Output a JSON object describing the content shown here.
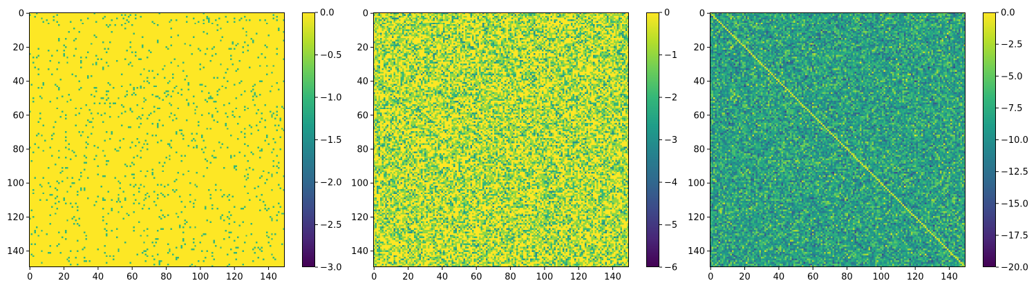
{
  "chart_data": [
    {
      "type": "heatmap",
      "title": "",
      "xlabel": "",
      "ylabel": "",
      "rows": 150,
      "cols": 150,
      "xlim": [
        0,
        150
      ],
      "ylim": [
        150,
        0
      ],
      "x_ticks": [
        "0",
        "20",
        "40",
        "60",
        "80",
        "100",
        "120",
        "140"
      ],
      "y_ticks": [
        "0",
        "20",
        "40",
        "60",
        "80",
        "100",
        "120",
        "140"
      ],
      "colormap": "viridis",
      "colorbar": {
        "range": [
          -3.0,
          0.0
        ],
        "ticks": [
          0.0,
          -0.5,
          -1.0,
          -1.5,
          -2.0,
          -2.5,
          -3.0
        ],
        "tick_labels": [
          "0.0",
          "−0.5",
          "−1.0",
          "−1.5",
          "−2.0",
          "−2.5",
          "−3.0"
        ]
      },
      "pattern": {
        "background_value": 0.0,
        "sparse_value": -1.0,
        "sparse_fraction": 0.055,
        "diagonal": false
      }
    },
    {
      "type": "heatmap",
      "title": "",
      "xlabel": "",
      "ylabel": "",
      "rows": 150,
      "cols": 150,
      "xlim": [
        0,
        150
      ],
      "ylim": [
        150,
        0
      ],
      "x_ticks": [
        "0",
        "20",
        "40",
        "60",
        "80",
        "100",
        "120",
        "140"
      ],
      "y_ticks": [
        "0",
        "20",
        "40",
        "60",
        "80",
        "100",
        "120",
        "140"
      ],
      "colormap": "viridis",
      "colorbar": {
        "range": [
          -6,
          0
        ],
        "ticks": [
          0,
          -1,
          -2,
          -3,
          -4,
          -5,
          -6
        ],
        "tick_labels": [
          "0",
          "−1",
          "−2",
          "−3",
          "−4",
          "−5",
          "−6"
        ]
      },
      "pattern": {
        "value_distribution": [
          [
            0,
            0.45
          ],
          [
            -1,
            0.33
          ],
          [
            -2,
            0.17
          ],
          [
            -3,
            0.05
          ]
        ],
        "diagonal": false
      }
    },
    {
      "type": "heatmap",
      "title": "",
      "xlabel": "",
      "ylabel": "",
      "rows": 150,
      "cols": 150,
      "xlim": [
        0,
        150
      ],
      "ylim": [
        150,
        0
      ],
      "x_ticks": [
        "0",
        "20",
        "40",
        "60",
        "80",
        "100",
        "120",
        "140"
      ],
      "y_ticks": [
        "0",
        "20",
        "40",
        "60",
        "80",
        "100",
        "120",
        "140"
      ],
      "colormap": "viridis",
      "colorbar": {
        "range": [
          -20.0,
          0.0
        ],
        "ticks": [
          0.0,
          -2.5,
          -5.0,
          -7.5,
          -10.0,
          -12.5,
          -15.0,
          -17.5,
          -20.0
        ],
        "tick_labels": [
          "0.0",
          "−2.5",
          "−5.0",
          "−7.5",
          "−10.0",
          "−12.5",
          "−15.0",
          "−17.5",
          "−20.0"
        ]
      },
      "pattern": {
        "noise_mean": -8.5,
        "noise_spread": 2.6,
        "diagonal": true,
        "diagonal_value": -1.0
      }
    }
  ]
}
